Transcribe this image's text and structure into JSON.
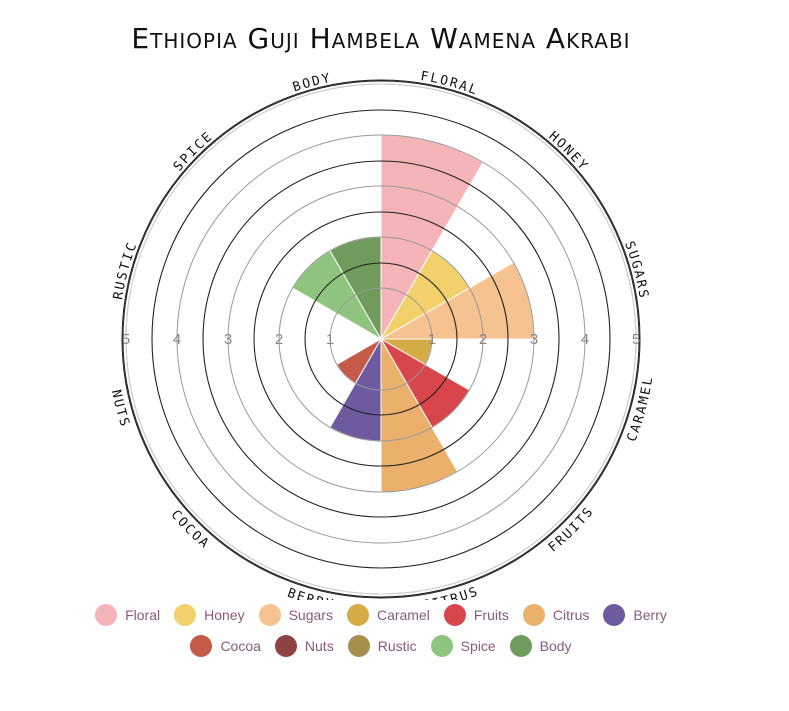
{
  "chart_data": {
    "type": "polar-area",
    "title": "Ethiopia Guji Hambela Wamena Akrabi",
    "rlim": [
      0,
      5
    ],
    "r_ticks": [
      1,
      2,
      3,
      4,
      5
    ],
    "categories": [
      "Floral",
      "Honey",
      "Sugars",
      "Caramel",
      "Fruits",
      "Citrus",
      "Berry",
      "Cocoa",
      "Nuts",
      "Rustic",
      "Spice",
      "Body"
    ],
    "axis_labels": [
      "FLORAL",
      "HONEY",
      "SUGARS",
      "CARAMEL",
      "FRUITS",
      "CITRUS",
      "BERRY",
      "COCOA",
      "NUTS",
      "RUSTIC",
      "SPICE",
      "BODY"
    ],
    "values": [
      4,
      2,
      3,
      1,
      2,
      3,
      2,
      1,
      0,
      0,
      2,
      2
    ],
    "colors": [
      "#f4b4b8",
      "#f2d06b",
      "#f6c290",
      "#d4ab45",
      "#d8454a",
      "#eab06c",
      "#6e5a9e",
      "#c45a47",
      "#8e4343",
      "#a68f4b",
      "#8fc47f",
      "#6f9c5c"
    ],
    "legend_position": "bottom"
  }
}
